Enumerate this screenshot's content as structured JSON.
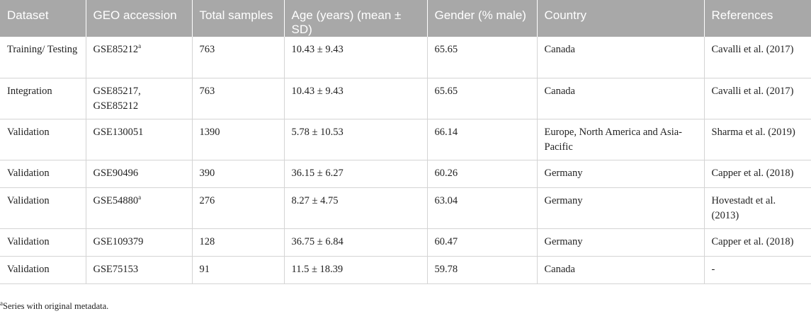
{
  "table": {
    "headers": [
      "Dataset",
      "GEO accession",
      "Total samples",
      "Age (years) (mean ± SD)",
      "Gender (% male)",
      "Country",
      "References"
    ],
    "rows": [
      {
        "dataset": "Training/ Testing",
        "geo": "GSE85212",
        "geo_mark": "a",
        "total": "763",
        "age": "10.43 ± 9.43",
        "gender": "65.65",
        "country": "Canada",
        "ref": "Cavalli et al. (2017)"
      },
      {
        "dataset": "Integration",
        "geo": "GSE85217, GSE85212",
        "geo_mark": "",
        "total": "763",
        "age": "10.43 ± 9.43",
        "gender": "65.65",
        "country": "Canada",
        "ref": "Cavalli et al. (2017)"
      },
      {
        "dataset": "Validation",
        "geo": "GSE130051",
        "geo_mark": "",
        "total": "1390",
        "age": "5.78 ± 10.53",
        "gender": "66.14",
        "country": "Europe, North America and Asia-Pacific",
        "ref": "Sharma et al. (2019)"
      },
      {
        "dataset": "Validation",
        "geo": "GSE90496",
        "geo_mark": "",
        "total": "390",
        "age": "36.15 ± 6.27",
        "gender": "60.26",
        "country": "Germany",
        "ref": "Capper et al. (2018)"
      },
      {
        "dataset": "Validation",
        "geo": "GSE54880",
        "geo_mark": "a",
        "total": "276",
        "age": "8.27 ± 4.75",
        "gender": "63.04",
        "country": "Germany",
        "ref": "Hovestadt et al. (2013)"
      },
      {
        "dataset": "Validation",
        "geo": "GSE109379",
        "geo_mark": "",
        "total": "128",
        "age": "36.75 ± 6.84",
        "gender": "60.47",
        "country": "Germany",
        "ref": "Capper et al. (2018)"
      },
      {
        "dataset": "Validation",
        "geo": "GSE75153",
        "geo_mark": "",
        "total": "91",
        "age": "11.5 ± 18.39",
        "gender": "59.78",
        "country": "Canada",
        "ref": "-"
      }
    ]
  },
  "footnote": {
    "mark": "a",
    "text": "Series with original metadata."
  }
}
